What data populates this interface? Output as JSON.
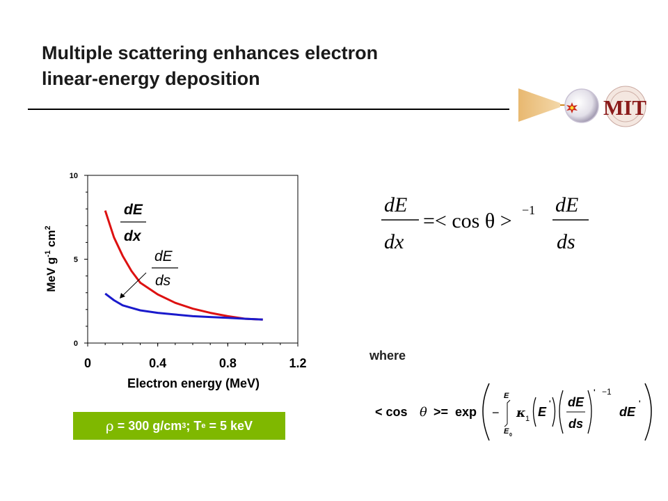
{
  "title": {
    "line1": "Multiple scattering enhances electron",
    "line2": "linear-energy deposition"
  },
  "logo": {
    "text": "MIT"
  },
  "chart_data": {
    "type": "line",
    "xlabel": "Electron energy (MeV)",
    "ylabel": "MeV g-1 cm2",
    "xlim": [
      0,
      1.2
    ],
    "ylim": [
      0,
      10
    ],
    "xticks": [
      "0",
      "0.4",
      "0.8",
      "1.2"
    ],
    "yticks": [
      "0",
      "5",
      "10"
    ],
    "grid": false,
    "series": [
      {
        "name": "dE/dx",
        "color": "#dd1111",
        "x": [
          0.1,
          0.15,
          0.2,
          0.25,
          0.3,
          0.4,
          0.5,
          0.6,
          0.7,
          0.8,
          0.9,
          1.0
        ],
        "y": [
          7.9,
          6.3,
          5.2,
          4.3,
          3.6,
          2.9,
          2.4,
          2.05,
          1.8,
          1.6,
          1.45,
          1.4
        ]
      },
      {
        "name": "dE/ds",
        "color": "#1a1acc",
        "x": [
          0.1,
          0.15,
          0.2,
          0.25,
          0.3,
          0.4,
          0.5,
          0.6,
          0.7,
          0.8,
          0.9,
          1.0
        ],
        "y": [
          2.95,
          2.55,
          2.25,
          2.1,
          1.95,
          1.8,
          1.7,
          1.6,
          1.55,
          1.5,
          1.45,
          1.4
        ]
      }
    ],
    "annotations": {
      "dEdx": {
        "num": "dE",
        "den": "dx"
      },
      "dEds": {
        "num": "dE",
        "den": "ds"
      }
    }
  },
  "badge": {
    "rho": "ρ",
    "text1": " = 300 g/cm",
    "sup1": "3",
    "text2": "; T",
    "sub1": "e",
    "text3": " = 5 keV"
  },
  "equation1": {
    "lhs_num": "dE",
    "lhs_den": "dx",
    "mid": "=< cos θ >",
    "exp": "−1",
    "rhs_num": "dE",
    "rhs_den": "ds"
  },
  "where": "where",
  "equation2": {
    "lhs": "< cos",
    "theta": "θ",
    "eq": ">=",
    "exp": "exp",
    "minus": "−",
    "int_upper": "E",
    "int_lower": "E",
    "int_lower_sub": "0",
    "kappa": "κ",
    "kappa_sub": "1",
    "E": "E",
    "prime": "'",
    "frac_num": "dE",
    "frac_den": "ds",
    "neg1": "−1",
    "dE": "dE"
  }
}
